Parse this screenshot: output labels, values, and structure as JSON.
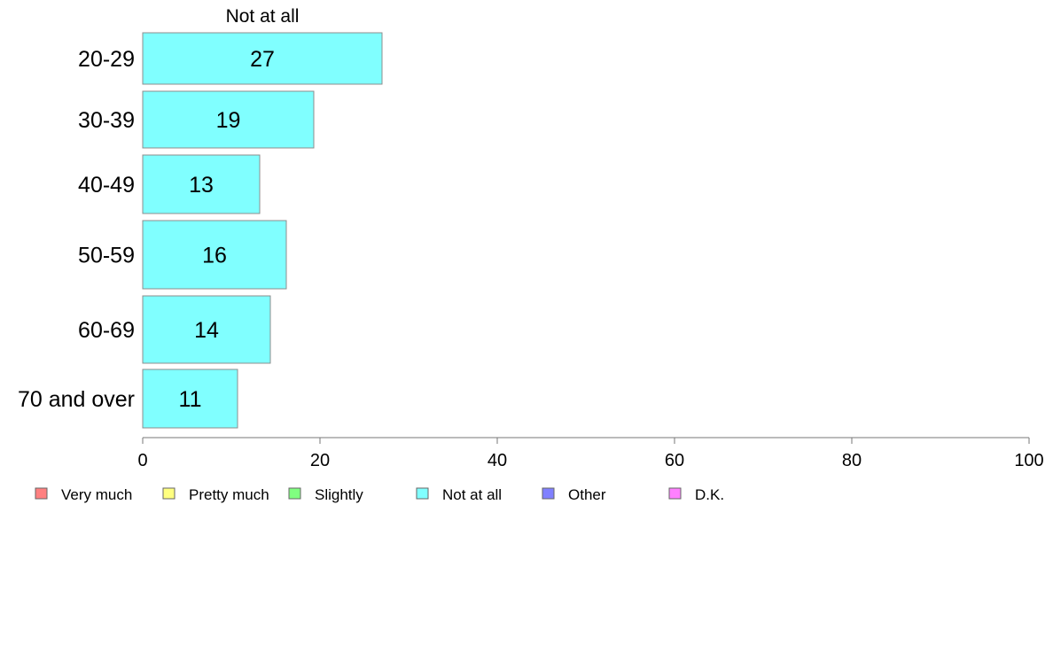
{
  "chart_data": {
    "type": "bar",
    "orientation": "horizontal",
    "stacked": true,
    "categories": [
      "20-29",
      "30-39",
      "40-49",
      "50-59",
      "60-69",
      "70 and over"
    ],
    "series": [
      {
        "name": "Very much",
        "color": "#FF8080",
        "values": [
          0,
          0,
          0,
          0,
          0,
          0
        ]
      },
      {
        "name": "Pretty much",
        "color": "#FFFF80",
        "values": [
          0,
          0,
          0,
          0,
          0,
          0
        ]
      },
      {
        "name": "Slightly",
        "color": "#80FF80",
        "values": [
          0,
          0,
          0,
          0,
          0,
          0
        ]
      },
      {
        "name": "Not at all",
        "color": "#80FFFF",
        "values": [
          27,
          19.3,
          13.2,
          16.2,
          14.4,
          10.7
        ]
      },
      {
        "name": "Other",
        "color": "#8080FF",
        "values": [
          0,
          0,
          0,
          0,
          0,
          0
        ]
      },
      {
        "name": "D.K.",
        "color": "#FF80FF",
        "values": [
          0,
          0,
          0,
          0,
          0,
          0
        ]
      }
    ],
    "data_labels": [
      "27",
      "19",
      "13",
      "16",
      "14",
      "11"
    ],
    "series_header": "Not at all",
    "xlim": [
      0,
      100
    ],
    "xticks": [
      0,
      20,
      40,
      60,
      80,
      100
    ],
    "grid": false,
    "legend_position": "bottom"
  }
}
